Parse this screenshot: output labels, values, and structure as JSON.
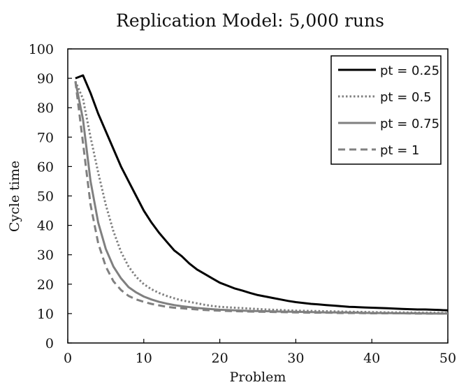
{
  "chart_data": {
    "type": "line",
    "title": "Replication Model: 5,000 runs",
    "xlabel": "Problem",
    "ylabel": "Cycle time",
    "xlim": [
      0,
      50
    ],
    "ylim": [
      0,
      100
    ],
    "x_ticks": [
      0,
      10,
      20,
      30,
      40,
      50
    ],
    "y_ticks": [
      0,
      10,
      20,
      30,
      40,
      50,
      60,
      70,
      80,
      90,
      100
    ],
    "grid": false,
    "legend_position": "top-right",
    "series": [
      {
        "name": "pt = 0.25",
        "color": "#000000",
        "style": "solid",
        "x": [
          1,
          2,
          3,
          4,
          5,
          6,
          7,
          8,
          9,
          10,
          11,
          12,
          13,
          14,
          15,
          16,
          17,
          18,
          19,
          20,
          21,
          22,
          23,
          24,
          25,
          26,
          27,
          28,
          29,
          30,
          31,
          32,
          33,
          34,
          35,
          36,
          37,
          38,
          39,
          40,
          41,
          42,
          43,
          44,
          45,
          46,
          47,
          48,
          49,
          50
        ],
        "y": [
          90,
          91,
          85,
          78,
          72,
          66,
          60,
          55,
          50,
          45,
          41,
          37.5,
          34.5,
          31.5,
          29.5,
          27,
          25,
          23.5,
          22,
          20.5,
          19.5,
          18.5,
          17.8,
          17,
          16.3,
          15.8,
          15.3,
          14.8,
          14.3,
          13.9,
          13.6,
          13.3,
          13.1,
          12.9,
          12.7,
          12.5,
          12.3,
          12.2,
          12.1,
          12.0,
          11.9,
          11.8,
          11.7,
          11.6,
          11.5,
          11.4,
          11.4,
          11.3,
          11.2,
          11.1
        ]
      },
      {
        "name": "pt = 0.5",
        "color": "#808080",
        "style": "dotted",
        "x": [
          1,
          2,
          3,
          4,
          5,
          6,
          7,
          8,
          9,
          10,
          11,
          12,
          13,
          14,
          15,
          16,
          17,
          18,
          19,
          20,
          22,
          24,
          26,
          28,
          30,
          32,
          34,
          36,
          38,
          40,
          42,
          44,
          46,
          48,
          50
        ],
        "y": [
          89,
          83,
          70,
          58,
          47,
          38,
          31,
          26,
          22.5,
          20,
          18.3,
          17,
          16,
          15.2,
          14.5,
          14,
          13.5,
          13,
          12.6,
          12.3,
          12,
          11.7,
          11.4,
          11.2,
          11,
          10.9,
          10.8,
          10.7,
          10.6,
          10.5,
          10.4,
          10.4,
          10.3,
          10.3,
          10.2
        ]
      },
      {
        "name": "pt = 0.75",
        "color": "#808080",
        "style": "solid",
        "x": [
          1,
          2,
          3,
          4,
          5,
          6,
          7,
          8,
          9,
          10,
          11,
          12,
          13,
          14,
          15,
          16,
          17,
          18,
          19,
          20,
          22,
          24,
          26,
          28,
          30,
          32,
          34,
          36,
          38,
          40,
          42,
          44,
          46,
          48,
          50
        ],
        "y": [
          89,
          76,
          55,
          41,
          32,
          26,
          22,
          19,
          17.2,
          15.8,
          14.8,
          14,
          13.4,
          12.9,
          12.5,
          12.2,
          11.9,
          11.7,
          11.5,
          11.3,
          11.1,
          10.9,
          10.8,
          10.7,
          10.6,
          10.5,
          10.4,
          10.4,
          10.3,
          10.2,
          10.2,
          10.1,
          10.1,
          10.0,
          10.0
        ]
      },
      {
        "name": "pt = 1",
        "color": "#808080",
        "style": "dashed",
        "x": [
          1,
          2,
          3,
          4,
          5,
          6,
          7,
          8,
          9,
          10,
          11,
          12,
          13,
          14,
          15,
          16,
          17,
          18,
          19,
          20,
          22,
          24,
          26,
          28,
          30,
          32,
          34,
          36,
          38,
          40,
          42,
          44,
          46,
          48,
          50
        ],
        "y": [
          89,
          68,
          47,
          34,
          26,
          21,
          18,
          16,
          14.8,
          14,
          13.3,
          12.8,
          12.3,
          12,
          11.8,
          11.6,
          11.4,
          11.2,
          11.1,
          11,
          10.8,
          10.7,
          10.6,
          10.5,
          10.4,
          10.3,
          10.3,
          10.2,
          10.2,
          10.1,
          10.1,
          10.1,
          10.0,
          10.0,
          10.0
        ]
      }
    ]
  }
}
